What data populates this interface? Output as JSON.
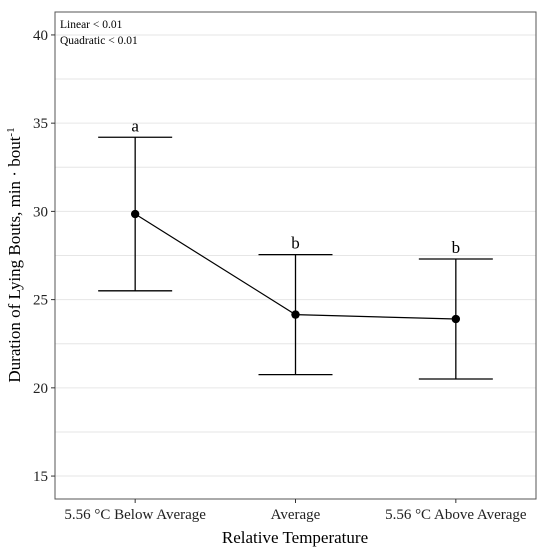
{
  "chart_data": {
    "type": "line",
    "xlabel": "Relative Temperature",
    "ylabel": "Duration of Lying Bouts, min · bout",
    "ylabel_superscript": "-1",
    "categories": [
      "5.56 °C Below Average",
      "Average",
      "5.56 °C Above Average"
    ],
    "ylim": [
      13.7,
      41.3
    ],
    "yticks": [
      15,
      20,
      25,
      30,
      35,
      40
    ],
    "grid": true,
    "series": [
      {
        "values": [
          29.85,
          24.15,
          23.9
        ],
        "error_lower": [
          25.5,
          20.75,
          20.5
        ],
        "error_upper": [
          34.2,
          27.55,
          27.3
        ],
        "letters": [
          "a",
          "b",
          "b"
        ]
      }
    ],
    "annotations": [
      "Linear < 0.01",
      "Quadratic < 0.01"
    ]
  }
}
